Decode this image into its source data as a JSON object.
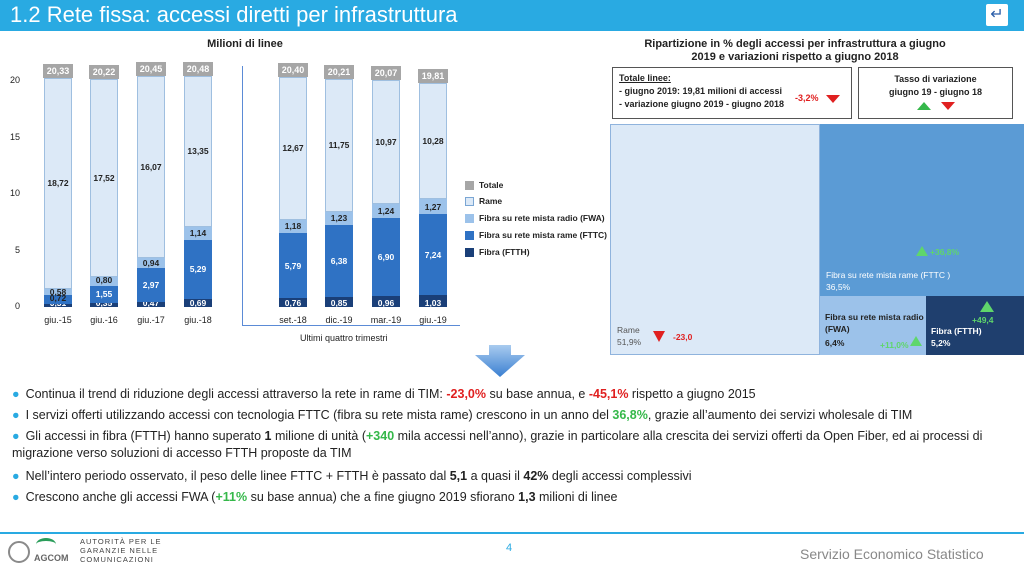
{
  "header": {
    "title": "1.2 Rete fissa: accessi diretti per infrastruttura",
    "back_icon": "return-arrow-icon"
  },
  "left_chart": {
    "title": "Milioni di linee",
    "ylim": [
      0,
      21
    ],
    "yticks": [
      "0",
      "5",
      "10",
      "15",
      "20"
    ],
    "group_label": "Ultimi quattro trimestri",
    "legend": [
      "Totale",
      "Rame",
      "Fibra su rete mista radio (FWA)",
      "Fibra su rete mista rame (FTTC)",
      "Fibra (FTTH)"
    ]
  },
  "chart_data": {
    "type": "bar",
    "stacked": true,
    "title": "Milioni di linee",
    "categories": [
      "giu.-15",
      "giu.-16",
      "giu.-17",
      "giu.-18",
      "set.-18",
      "dic.-19",
      "mar.-19",
      "giu.-19"
    ],
    "series": [
      {
        "name": "Fibra (FTTH)",
        "values": [
          0.31,
          0.35,
          0.47,
          0.69,
          0.76,
          0.85,
          0.96,
          1.03
        ],
        "labels": [
          "0,31",
          "0,35",
          "0,47",
          "0,69",
          "0,76",
          "0,85",
          "0,96",
          "1,03"
        ]
      },
      {
        "name": "Fibra su rete mista rame (FTTC)",
        "values": [
          0.72,
          1.55,
          2.97,
          5.29,
          5.79,
          6.38,
          6.9,
          7.24
        ],
        "labels": [
          "0,72",
          "1,55",
          "2,97",
          "5,29",
          "5,79",
          "6,38",
          "6,90",
          "7,24"
        ]
      },
      {
        "name": "Fibra su rete mista radio (FWA)",
        "values": [
          0.58,
          0.8,
          0.94,
          1.14,
          1.18,
          1.23,
          1.24,
          1.27
        ],
        "labels": [
          "0,58",
          "0,80",
          "0,94",
          "1,14",
          "1,18",
          "1,23",
          "1,24",
          "1,27"
        ]
      },
      {
        "name": "Rame",
        "values": [
          18.72,
          17.52,
          16.07,
          13.35,
          12.67,
          11.75,
          10.97,
          10.28
        ],
        "labels": [
          "18,72",
          "17,52",
          "16,07",
          "13,35",
          "12,67",
          "11,75",
          "10,97",
          "10,28"
        ]
      }
    ],
    "totals": {
      "name": "Totale",
      "values": [
        20.33,
        20.22,
        20.45,
        20.48,
        20.4,
        20.21,
        20.07,
        19.81
      ],
      "labels": [
        "20,33",
        "20,22",
        "20,45",
        "20,48",
        "20,40",
        "20,21",
        "20,07",
        "19,81"
      ]
    },
    "ylim": [
      0,
      21
    ],
    "legend_position": "right",
    "colors": {
      "Totale": "#a6a6a6",
      "Rame": "#dce9f7",
      "Fibra su rete mista radio (FWA)": "#9cc2ea",
      "Fibra su rete mista rame (FTTC)": "#2f72c4",
      "Fibra (FTTH)": "#1a3f78"
    }
  },
  "right_chart": {
    "title_line1": "Ripartizione in % degli accessi per infrastruttura a giugno",
    "title_line2": "2019 e variazioni rispetto a giugno 2018",
    "totals_box": {
      "title": "Totale linee:",
      "line1": "- giugno 2019: 19,81 milioni di accessi",
      "line2": "- variazione giugno 2019 - giugno 2018",
      "value": "-3,2%"
    },
    "rate_box": {
      "line1": "Tasso di variazione",
      "line2": "giugno 19 - giugno 18"
    },
    "treemap": [
      {
        "name": "Rame",
        "share": 51.9,
        "share_label": "51,9%",
        "change_label": "-23,0",
        "direction": "down",
        "color": "#dce9f7"
      },
      {
        "name": "Fibra su rete mista rame (FTTC )",
        "share": 36.5,
        "share_label": "36,5%",
        "change_label": "+36,8%",
        "direction": "up",
        "color": "#5b9bd5"
      },
      {
        "name_line1": "Fibra su rete mista radio",
        "name_line2": "(FWA)",
        "share": 6.4,
        "share_label": "6,4%",
        "change_label": "+11,0%",
        "direction": "up",
        "color": "#9cc2ea"
      },
      {
        "name": "Fibra (FTTH)",
        "share": 5.2,
        "share_label": "5,2%",
        "change_label": "+49,4",
        "direction": "up",
        "color": "#1f3f6e"
      }
    ]
  },
  "bullets": [
    {
      "parts": [
        "Continua il trend di riduzione degli accessi attraverso la rete in rame di TIM: ",
        "-23,0%",
        " su base annua, e ",
        "-45,1%",
        " rispetto a giugno 2015"
      ]
    },
    {
      "parts": [
        "I servizi offerti utilizzando accessi con tecnologia FTTC (fibra su rete mista rame) crescono in un anno del ",
        "36,8%",
        ", grazie all’aumento dei servizi wholesale di TIM"
      ]
    },
    {
      "parts": [
        "Gli accessi in fibra (FTTH) hanno superato ",
        "1",
        " milione di unità (",
        "+340",
        " mila accessi nell’anno), grazie in particolare alla crescita dei servizi offerti da Open Fiber, ed ai processi di migrazione verso soluzioni di accesso FTTH proposte da TIM"
      ]
    },
    {
      "parts": [
        "Nell’intero periodo osservato, il peso delle linee FTTC + FTTH è passato dal ",
        "5,1",
        " a quasi il ",
        "42%",
        " degli accessi complessivi"
      ]
    },
    {
      "parts": [
        "Crescono anche gli accessi FWA (",
        "+11%",
        " su base annua) che a fine giugno 2019 sfiorano ",
        "1,3",
        " milioni di linee"
      ]
    }
  ],
  "footer": {
    "logo_line1": "AUTORITÀ PER LE",
    "logo_line2": "GARANZIE NELLE",
    "logo_line3": "COMUNICAZIONI",
    "logo_abbr": "AGCOM",
    "page_number": "4",
    "service": "Servizio Economico Statistico"
  }
}
